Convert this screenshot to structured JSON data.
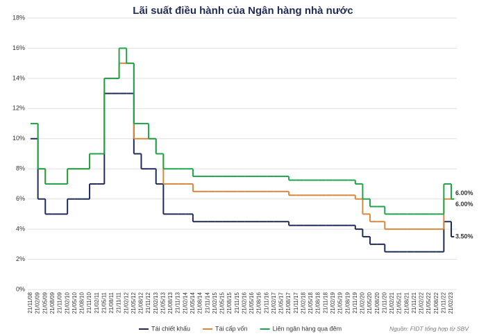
{
  "chart_data": {
    "type": "step",
    "title": "Lãi suất điều hành của Ngân hàng nhà nước",
    "source": "Nguồn: FIDT tổng hợp từ SBV",
    "categories": [
      "21/11/08",
      "21/02/09",
      "21/05/09",
      "21/08/09",
      "21/11/09",
      "21/02/10",
      "21/05/10",
      "21/08/10",
      "21/11/10",
      "21/02/11",
      "21/05/11",
      "21/08/11",
      "21/11/11",
      "21/02/12",
      "21/05/12",
      "21/08/12",
      "21/11/12",
      "21/02/13",
      "21/05/13",
      "21/08/13",
      "21/11/13",
      "21/02/14",
      "21/05/14",
      "21/08/14",
      "21/11/14",
      "21/02/15",
      "21/05/15",
      "21/08/15",
      "21/11/15",
      "21/02/16",
      "21/05/16",
      "21/08/16",
      "21/11/16",
      "21/02/17",
      "21/05/17",
      "21/08/17",
      "21/11/17",
      "21/02/18",
      "21/05/18",
      "21/08/18",
      "21/11/18",
      "21/02/19",
      "21/05/19",
      "21/08/19",
      "21/11/19",
      "21/02/20",
      "21/05/20",
      "21/08/20",
      "21/11/20",
      "21/02/21",
      "21/05/21",
      "21/08/21",
      "21/11/21",
      "21/02/22",
      "21/05/22",
      "21/08/22",
      "21/11/22",
      "21/02/23"
    ],
    "series": [
      {
        "name": "Tái chiết khấu",
        "color": "#1f2a56",
        "end_label": "3.50%",
        "values": [
          10,
          6,
          5,
          5,
          5,
          6,
          6,
          6,
          7,
          7,
          13,
          13,
          13,
          13,
          9,
          8,
          8,
          7,
          5,
          5,
          5,
          5,
          4.5,
          4.5,
          4.5,
          4.5,
          4.5,
          4.5,
          4.5,
          4.5,
          4.5,
          4.5,
          4.5,
          4.5,
          4.5,
          4.25,
          4.25,
          4.25,
          4.25,
          4.25,
          4.25,
          4.25,
          4.25,
          4.25,
          4,
          3.5,
          3,
          3,
          2.5,
          2.5,
          2.5,
          2.5,
          2.5,
          2.5,
          2.5,
          2.5,
          4.5,
          3.5
        ]
      },
      {
        "name": "Tái cấp vốn",
        "color": "#d9873e",
        "end_label": "6.00%",
        "values": [
          11,
          8,
          7,
          7,
          7,
          8,
          8,
          8,
          9,
          9,
          14,
          14,
          15,
          15,
          10,
          10,
          10,
          9,
          7,
          7,
          7,
          7,
          6.5,
          6.5,
          6.5,
          6.5,
          6.5,
          6.5,
          6.5,
          6.5,
          6.5,
          6.5,
          6.5,
          6.5,
          6.5,
          6.25,
          6.25,
          6.25,
          6.25,
          6.25,
          6.25,
          6.25,
          6.25,
          6.25,
          6,
          5,
          4.5,
          4.5,
          4,
          4,
          4,
          4,
          4,
          4,
          4,
          4,
          6,
          6
        ]
      },
      {
        "name": "Liên ngân hàng qua đêm",
        "color": "#1fa34a",
        "end_label": "6.00%",
        "values": [
          11,
          8,
          7,
          7,
          7,
          8,
          8,
          8,
          9,
          9,
          14,
          14,
          16,
          15,
          11,
          11,
          10,
          9,
          8,
          8,
          8,
          8,
          7.5,
          7.5,
          7.5,
          7.5,
          7.5,
          7.5,
          7.5,
          7.5,
          7.5,
          7.5,
          7.5,
          7.5,
          7.5,
          7.25,
          7.25,
          7.25,
          7.25,
          7.25,
          7.25,
          7.25,
          7.25,
          7.25,
          7,
          6,
          5.5,
          5.5,
          5,
          5,
          5,
          5,
          5,
          5,
          5,
          5,
          7,
          6
        ]
      }
    ],
    "ylim": [
      0,
      18
    ],
    "yticks": [
      {
        "value": 0,
        "label": "0%"
      },
      {
        "value": 2,
        "label": "2%"
      },
      {
        "value": 4,
        "label": "4%"
      },
      {
        "value": 6,
        "label": "6%"
      },
      {
        "value": 8,
        "label": "8%"
      },
      {
        "value": 10,
        "label": "10%"
      },
      {
        "value": 12,
        "label": "12%"
      },
      {
        "value": 14,
        "label": "14%"
      },
      {
        "value": 16,
        "label": "16%"
      },
      {
        "value": 18,
        "label": "18%"
      }
    ],
    "grid": true
  }
}
